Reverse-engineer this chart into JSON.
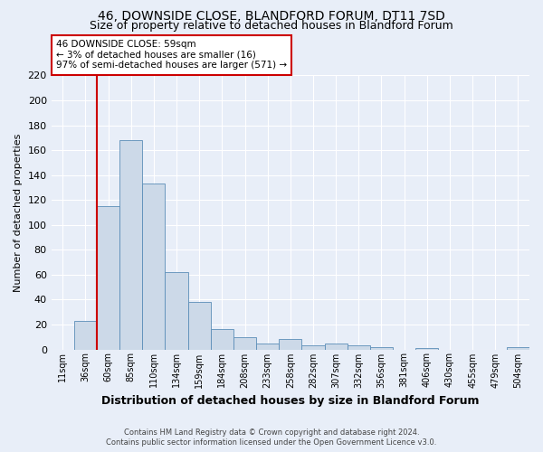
{
  "title1": "46, DOWNSIDE CLOSE, BLANDFORD FORUM, DT11 7SD",
  "title2": "Size of property relative to detached houses in Blandford Forum",
  "xlabel": "Distribution of detached houses by size in Blandford Forum",
  "ylabel": "Number of detached properties",
  "bin_labels": [
    "11sqm",
    "36sqm",
    "60sqm",
    "85sqm",
    "110sqm",
    "134sqm",
    "159sqm",
    "184sqm",
    "208sqm",
    "233sqm",
    "258sqm",
    "282sqm",
    "307sqm",
    "332sqm",
    "356sqm",
    "381sqm",
    "406sqm",
    "430sqm",
    "455sqm",
    "479sqm",
    "504sqm"
  ],
  "bar_values": [
    0,
    23,
    115,
    168,
    133,
    62,
    38,
    16,
    10,
    5,
    8,
    3,
    5,
    3,
    2,
    0,
    1,
    0,
    0,
    0,
    2
  ],
  "bar_color": "#ccd9e8",
  "bar_edge_color": "#5b8db8",
  "vline_color": "#cc0000",
  "ylim": [
    0,
    220
  ],
  "yticks": [
    0,
    20,
    40,
    60,
    80,
    100,
    120,
    140,
    160,
    180,
    200,
    220
  ],
  "annotation_title": "46 DOWNSIDE CLOSE: 59sqm",
  "annotation_line1": "← 3% of detached houses are smaller (16)",
  "annotation_line2": "97% of semi-detached houses are larger (571) →",
  "annotation_box_color": "#ffffff",
  "annotation_box_edge": "#cc0000",
  "footer1": "Contains HM Land Registry data © Crown copyright and database right 2024.",
  "footer2": "Contains public sector information licensed under the Open Government Licence v3.0.",
  "background_color": "#e8eef8",
  "plot_bg_color": "#e8eef8",
  "grid_color": "#ffffff",
  "title1_fontsize": 10,
  "title2_fontsize": 9
}
